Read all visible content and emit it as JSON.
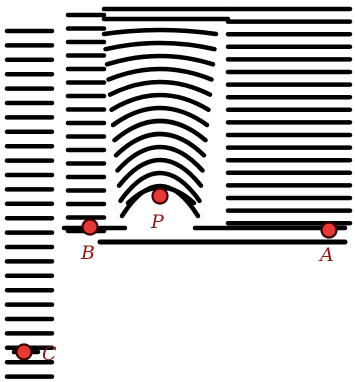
{
  "colors": {
    "wave": "#000000",
    "point_fill": "#e53935",
    "point_stroke": "#3a0000",
    "label": "#8b1a1a"
  },
  "points": [
    {
      "id": "P",
      "label": "P"
    },
    {
      "id": "B",
      "label": "B"
    },
    {
      "id": "A",
      "label": "A"
    },
    {
      "id": "C",
      "label": "C"
    }
  ]
}
